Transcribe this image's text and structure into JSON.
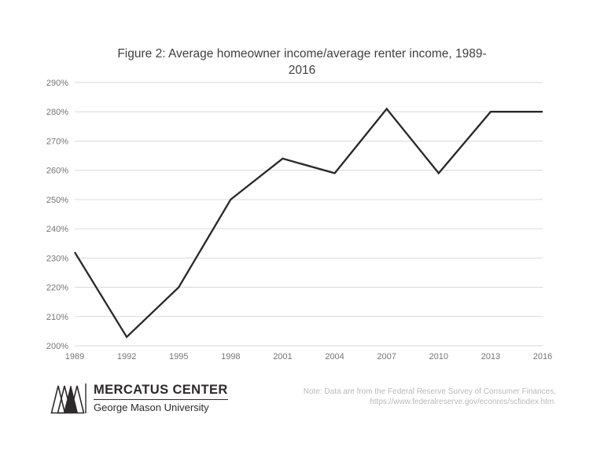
{
  "chart_data": {
    "type": "line",
    "title": "Figure 2: Average homeowner income/average renter income, 1989-2016",
    "title_lines": [
      "Figure 2: Average homeowner income/average renter income, 1989-",
      "2016"
    ],
    "categories": [
      "1989",
      "1992",
      "1995",
      "1998",
      "2001",
      "2004",
      "2007",
      "2010",
      "2013",
      "2016"
    ],
    "values": [
      232,
      203,
      220,
      250,
      264,
      259,
      281,
      259,
      280,
      280
    ],
    "xlabel": "",
    "ylabel": "",
    "ylim": [
      200,
      290
    ],
    "ytick_step": 10,
    "ytick_suffix": "%",
    "grid": true,
    "legend": "none",
    "line_color": "#2b2829",
    "grid_color": "#d9d9d9",
    "tick_label_color": "#757575"
  },
  "footer": {
    "logo_name": "MERCATUS CENTER",
    "logo_sub": "George Mason University",
    "note_line1": "Note: Data are from the Federal Reserve Survey of Consumer Finances,",
    "note_line2": "https://www.federalreserve.gov/econres/scfindex.htm."
  }
}
